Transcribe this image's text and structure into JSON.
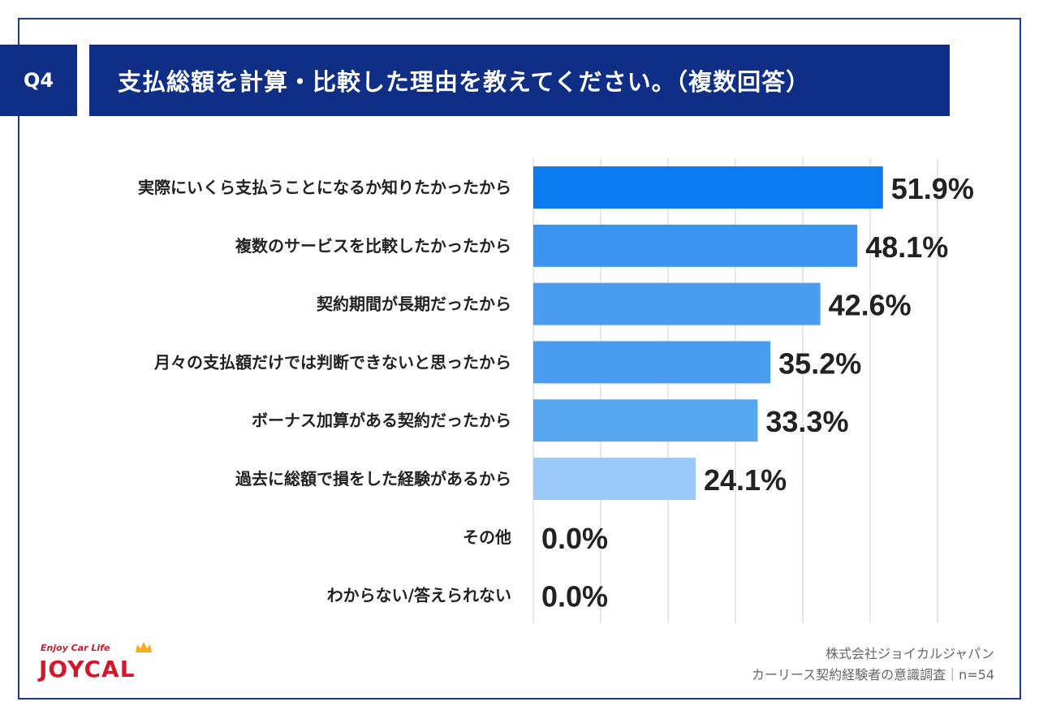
{
  "header": {
    "q_label": "Q4",
    "title": "支払総額を計算・比較した理由を教えてください。（複数回答）"
  },
  "chart_data": {
    "type": "bar",
    "orientation": "horizontal",
    "categories": [
      "実際にいくら支払うことになるか知りたかったから",
      "複数のサービスを比較したかったから",
      "契約期間が長期だったから",
      "月々の支払額だけでは判断できないと思ったから",
      "ボーナス加算がある契約だったから",
      "過去に総額で損をした経験があるから",
      "その他",
      "わからない/答えられない"
    ],
    "values": [
      51.9,
      48.1,
      42.6,
      35.2,
      33.3,
      24.1,
      0.0,
      0.0
    ],
    "value_labels": [
      "51.9%",
      "48.1%",
      "42.6%",
      "35.2%",
      "33.3%",
      "24.1%",
      "0.0%",
      "0.0%"
    ],
    "xlim": [
      0,
      60
    ],
    "grid": true,
    "bar_colors": [
      "#0a7cf0",
      "#3a93ee",
      "#4a9cf0",
      "#4a9cf0",
      "#58a6f0",
      "#9ac9f8",
      "#9ac9f8",
      "#9ac9f8"
    ]
  },
  "footer": {
    "company": "株式会社ジョイカルジャパン",
    "survey": "カーリース契約経験者の意識調査｜n=54"
  },
  "logo": {
    "tagline": "Enjoy Car Life",
    "name": "JOYCAL"
  }
}
